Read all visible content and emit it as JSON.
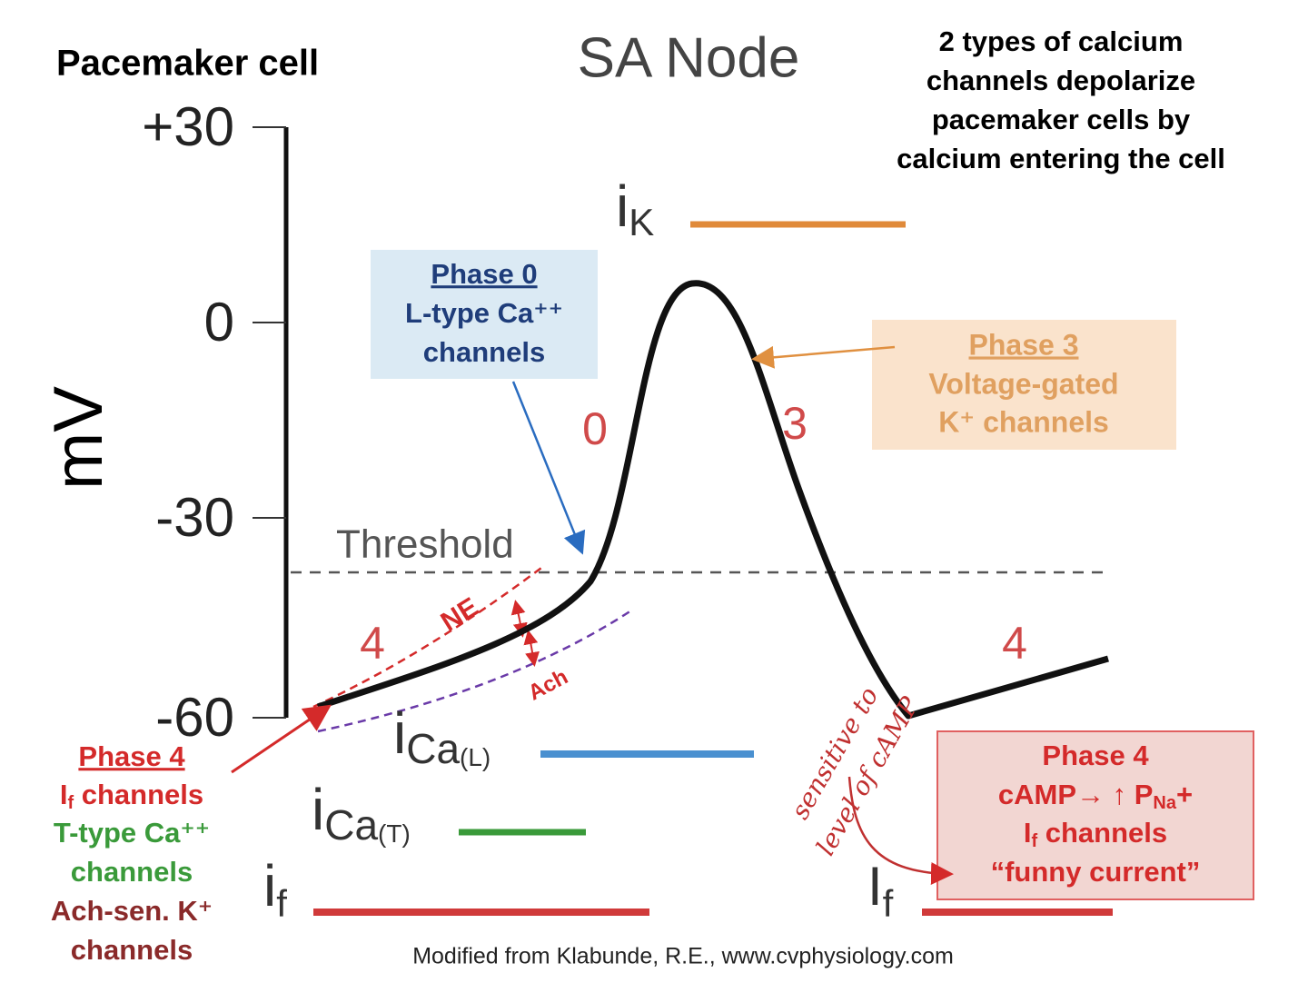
{
  "title_left": "Pacemaker cell",
  "title_center": "SA Node",
  "note": [
    "2 types of calcium",
    "channels depolarize",
    "pacemaker cells by",
    "calcium entering the cell"
  ],
  "axis": {
    "label": "mV",
    "ticks": [
      "+30",
      "0",
      "-30",
      "-60"
    ]
  },
  "threshold": "Threshold",
  "phase_numbers": [
    "0",
    "3",
    "4",
    "4"
  ],
  "modulators": [
    "NE",
    "Ach"
  ],
  "currents": {
    "i_k": {
      "symbol": "i",
      "sub": "K"
    },
    "i_ca_l": {
      "symbol": "i",
      "sub": "Ca",
      "qualifier": "(L)"
    },
    "i_ca_t": {
      "symbol": "i",
      "sub": "Ca",
      "qualifier": "(T)"
    },
    "i_f": {
      "symbol": "i",
      "sub": "f"
    },
    "i_f_right": {
      "symbol": "I",
      "sub": "f"
    }
  },
  "phase0_box": {
    "title": "Phase 0",
    "lines": [
      "L-type Ca⁺⁺",
      "channels"
    ]
  },
  "phase3_box": {
    "title": "Phase 3",
    "lines": [
      "Voltage-gated",
      "K⁺ channels"
    ]
  },
  "phase4_left": {
    "title": "Phase 4",
    "if_line": {
      "symbol": "I",
      "sub": "f",
      "text": " channels"
    },
    "t_type": [
      "T-type Ca⁺⁺",
      "channels"
    ],
    "ach": [
      "Ach-sen. K⁺",
      "channels"
    ]
  },
  "phase4_right": {
    "title": "Phase 4",
    "camp_line": {
      "text": "cAMP→ ↑ P",
      "sub": "Na",
      "end": "+"
    },
    "if_line": {
      "symbol": "I",
      "sub": "f",
      "text": " channels"
    },
    "funny": "“funny current”"
  },
  "handwritten": [
    "sensitive to",
    "level of cAMP"
  ],
  "credit": "Modified from Klabunde, R.E., www.cvphysiology.com"
}
